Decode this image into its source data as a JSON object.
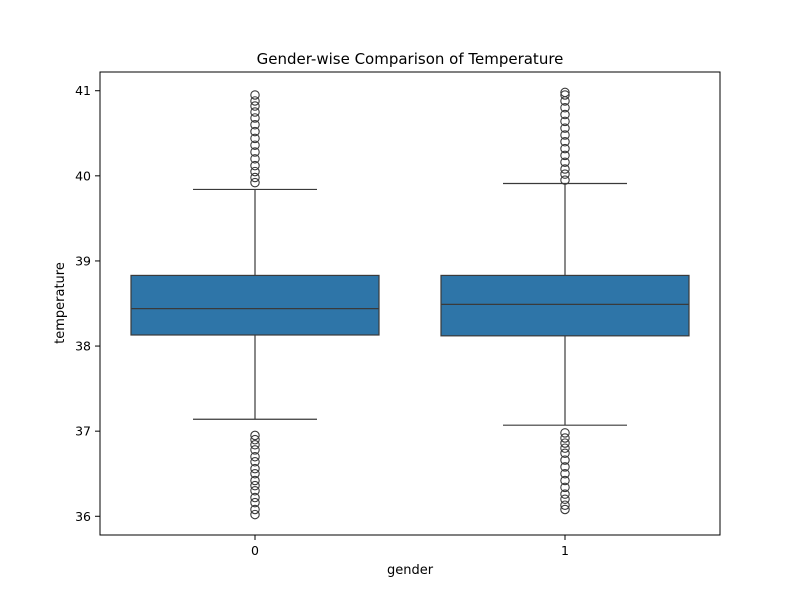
{
  "chart_data": {
    "type": "box",
    "title": "Gender-wise Comparison of Temperature",
    "xlabel": "gender",
    "ylabel": "temperature",
    "categories": [
      "0",
      "1"
    ],
    "ylim": [
      35.78,
      41.22
    ],
    "yticks": [
      36,
      37,
      38,
      39,
      40,
      41
    ],
    "box_color": "#2e75a8",
    "line_color": "#3a3a3a",
    "boxes": [
      {
        "category": "0",
        "whisker_low": 37.14,
        "q1": 38.13,
        "median": 38.44,
        "q3": 38.83,
        "whisker_high": 39.84,
        "outliers_low": [
          36.02,
          36.08,
          36.16,
          36.22,
          36.3,
          36.36,
          36.42,
          36.5,
          36.56,
          36.64,
          36.7,
          36.78,
          36.84,
          36.9,
          36.95
        ],
        "outliers_high": [
          39.92,
          39.98,
          40.05,
          40.12,
          40.2,
          40.28,
          40.36,
          40.44,
          40.52,
          40.6,
          40.68,
          40.75,
          40.82,
          40.88,
          40.95
        ]
      },
      {
        "category": "1",
        "whisker_low": 37.07,
        "q1": 38.12,
        "median": 38.49,
        "q3": 38.83,
        "whisker_high": 39.91,
        "outliers_low": [
          36.08,
          36.13,
          36.2,
          36.26,
          36.34,
          36.42,
          36.5,
          36.58,
          36.66,
          36.74,
          36.8,
          36.86,
          36.92,
          36.98
        ],
        "outliers_high": [
          39.95,
          40.02,
          40.08,
          40.16,
          40.24,
          40.32,
          40.4,
          40.48,
          40.56,
          40.64,
          40.72,
          40.8,
          40.88,
          40.95,
          40.98
        ]
      }
    ]
  }
}
